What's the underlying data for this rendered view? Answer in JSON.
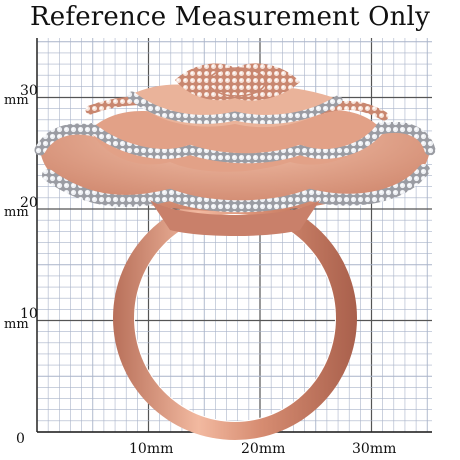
{
  "title": "Reference Measurement Only",
  "grid": {
    "on": true,
    "major_color": "#555555",
    "minor_color": "#a9b3c9"
  },
  "axes": {
    "origin_label": "0",
    "unit": "mm",
    "y_ticks": [
      {
        "label": "10",
        "unit": "mm"
      },
      {
        "label": "20",
        "unit": "mm"
      },
      {
        "label": "30",
        "unit": "mm"
      }
    ],
    "x_ticks": [
      {
        "label": "10mm"
      },
      {
        "label": "20mm"
      },
      {
        "label": "30mm"
      }
    ]
  },
  "product": {
    "description_icon": "rose-cocktail-ring",
    "band_color": "#d9957c",
    "crystal_color": "#c7c9cf",
    "rose_gold_color": "#e6a58a"
  }
}
